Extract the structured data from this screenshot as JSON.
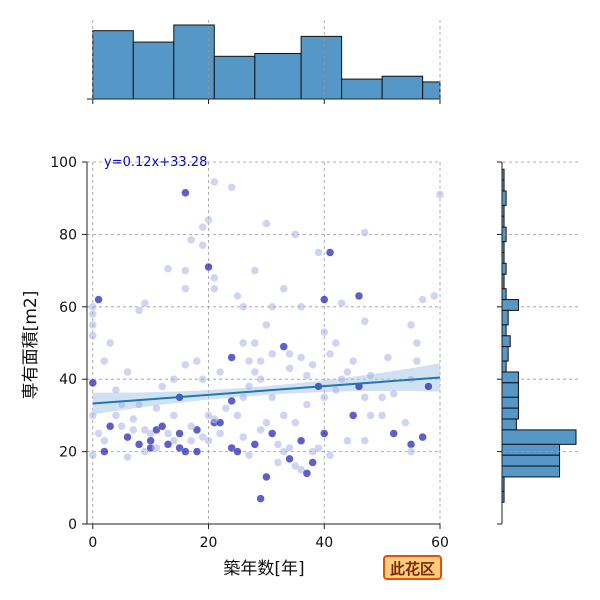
{
  "chart_data": {
    "type": "scatter",
    "xlabel": "築年数[年]",
    "ylabel": "専有面積[m2]",
    "xlim": [
      -1,
      60
    ],
    "ylim": [
      0,
      100
    ],
    "xticks": [
      0,
      20,
      40,
      60
    ],
    "yticks": [
      0,
      20,
      40,
      60,
      80,
      100
    ],
    "grid": true,
    "regression": {
      "label": "y=0.12x+33.28",
      "slope": 0.12,
      "intercept": 33.28,
      "color": "#1f77b4"
    },
    "points": [
      [
        16,
        91.5
      ],
      [
        21,
        94.5
      ],
      [
        24,
        93
      ],
      [
        20,
        84
      ],
      [
        19,
        82
      ],
      [
        13,
        70.5
      ],
      [
        16,
        70
      ],
      [
        20,
        71
      ],
      [
        21,
        68
      ],
      [
        17,
        78.5
      ],
      [
        19,
        77
      ],
      [
        30,
        83
      ],
      [
        35,
        80
      ],
      [
        39,
        75
      ],
      [
        41,
        75
      ],
      [
        47,
        80.5
      ],
      [
        28,
        70
      ],
      [
        25,
        63
      ],
      [
        21,
        65
      ],
      [
        16,
        65
      ],
      [
        33,
        65
      ],
      [
        40,
        62
      ],
      [
        36,
        60
      ],
      [
        31,
        60
      ],
      [
        26,
        60
      ],
      [
        9,
        61
      ],
      [
        8,
        59
      ],
      [
        0,
        60
      ],
      [
        1,
        62
      ],
      [
        0,
        58
      ],
      [
        0,
        55
      ],
      [
        0,
        52
      ],
      [
        2,
        45
      ],
      [
        3,
        50
      ],
      [
        6,
        42
      ],
      [
        0,
        39
      ],
      [
        0,
        30
      ],
      [
        1,
        25
      ],
      [
        2,
        23
      ],
      [
        2,
        20
      ],
      [
        0,
        19
      ],
      [
        6,
        18.5
      ],
      [
        8,
        22
      ],
      [
        9,
        20
      ],
      [
        10,
        25
      ],
      [
        11,
        26
      ],
      [
        13,
        25
      ],
      [
        14,
        23
      ],
      [
        15,
        21
      ],
      [
        16,
        20
      ],
      [
        17,
        23
      ],
      [
        18,
        26
      ],
      [
        19,
        24
      ],
      [
        20,
        23
      ],
      [
        21,
        28
      ],
      [
        22,
        25
      ],
      [
        24,
        21
      ],
      [
        25,
        20
      ],
      [
        26,
        24
      ],
      [
        27,
        19
      ],
      [
        28,
        22
      ],
      [
        29,
        26
      ],
      [
        30,
        28
      ],
      [
        31,
        25
      ],
      [
        32,
        22
      ],
      [
        33,
        20
      ],
      [
        34,
        18
      ],
      [
        35,
        16
      ],
      [
        36,
        15
      ],
      [
        37,
        14
      ],
      [
        38,
        17
      ],
      [
        39,
        21
      ],
      [
        40,
        25
      ],
      [
        41,
        19
      ],
      [
        34,
        21
      ],
      [
        36,
        23
      ],
      [
        38,
        20
      ],
      [
        29,
        7
      ],
      [
        30,
        13
      ],
      [
        32,
        17
      ],
      [
        42,
        37
      ],
      [
        43,
        40
      ],
      [
        44,
        42
      ],
      [
        45,
        45
      ],
      [
        46,
        38
      ],
      [
        47,
        35
      ],
      [
        48,
        30
      ],
      [
        50,
        35
      ],
      [
        52,
        36
      ],
      [
        55,
        40
      ],
      [
        56,
        45
      ],
      [
        58,
        38
      ],
      [
        59,
        63
      ],
      [
        60,
        91
      ],
      [
        57,
        62
      ],
      [
        55,
        55
      ],
      [
        56,
        50
      ],
      [
        47,
        56
      ],
      [
        46,
        63
      ],
      [
        43,
        61
      ],
      [
        42,
        50
      ],
      [
        40,
        53
      ],
      [
        38,
        44
      ],
      [
        36,
        46
      ],
      [
        34,
        47
      ],
      [
        33,
        49
      ],
      [
        31,
        47
      ],
      [
        29,
        45
      ],
      [
        28,
        42
      ],
      [
        27,
        38
      ],
      [
        26,
        35
      ],
      [
        25,
        30
      ],
      [
        24,
        34
      ],
      [
        23,
        32
      ],
      [
        22,
        28
      ],
      [
        21,
        29
      ],
      [
        20,
        30
      ],
      [
        18,
        20
      ],
      [
        17,
        27
      ],
      [
        15,
        25
      ],
      [
        14,
        30
      ],
      [
        12,
        38
      ],
      [
        11,
        32
      ],
      [
        10,
        21
      ],
      [
        8,
        33
      ],
      [
        7,
        26
      ],
      [
        6,
        24
      ],
      [
        5,
        27
      ],
      [
        4,
        30
      ],
      [
        3,
        27
      ],
      [
        44,
        23
      ],
      [
        47,
        23
      ],
      [
        52,
        25
      ],
      [
        55,
        22
      ],
      [
        55,
        20
      ],
      [
        57,
        24
      ],
      [
        54,
        28
      ],
      [
        50,
        30
      ],
      [
        48,
        41
      ],
      [
        41,
        47
      ],
      [
        39,
        38
      ],
      [
        37,
        33
      ],
      [
        35,
        28
      ],
      [
        33,
        30
      ],
      [
        31,
        35
      ],
      [
        29,
        40
      ],
      [
        27,
        45
      ],
      [
        24,
        46
      ],
      [
        22,
        42
      ],
      [
        19,
        40
      ],
      [
        18,
        45
      ],
      [
        16,
        44
      ],
      [
        14,
        40
      ],
      [
        12,
        27
      ],
      [
        10,
        23
      ],
      [
        11,
        21
      ],
      [
        13,
        22
      ],
      [
        9,
        26
      ],
      [
        7,
        29
      ],
      [
        5,
        33
      ],
      [
        4,
        37
      ],
      [
        15,
        35
      ],
      [
        26,
        50
      ],
      [
        28,
        50
      ],
      [
        30,
        55
      ],
      [
        34,
        43
      ],
      [
        37,
        41
      ],
      [
        40,
        35
      ],
      [
        45,
        30
      ],
      [
        51,
        46
      ]
    ],
    "top_hist": {
      "bins": [
        [
          0,
          7
        ],
        [
          7,
          14
        ],
        [
          14,
          21
        ],
        [
          21,
          28
        ],
        [
          28,
          36
        ],
        [
          36,
          43
        ],
        [
          43,
          50
        ],
        [
          50,
          57
        ],
        [
          57,
          60
        ]
      ],
      "counts": [
        24,
        20,
        26,
        15,
        16,
        22,
        7,
        8,
        6
      ]
    },
    "right_hist": {
      "bins": [
        [
          98,
          100
        ],
        [
          95,
          98
        ],
        [
          92,
          95
        ],
        [
          88,
          92
        ],
        [
          85,
          88
        ],
        [
          82,
          85
        ],
        [
          78,
          82
        ],
        [
          75,
          78
        ],
        [
          72,
          75
        ],
        [
          69,
          72
        ],
        [
          65,
          69
        ],
        [
          62,
          65
        ],
        [
          59,
          62
        ],
        [
          55,
          59
        ],
        [
          52,
          55
        ],
        [
          49,
          52
        ],
        [
          45,
          49
        ],
        [
          42,
          45
        ],
        [
          39,
          42
        ],
        [
          35,
          39
        ],
        [
          32,
          35
        ],
        [
          29,
          32
        ],
        [
          26,
          29
        ],
        [
          22,
          26
        ],
        [
          19,
          22
        ],
        [
          16,
          19
        ],
        [
          13,
          16
        ],
        [
          9,
          13
        ],
        [
          6,
          9
        ]
      ],
      "counts": [
        0,
        1,
        1,
        2,
        1,
        1,
        2,
        1,
        1,
        2,
        1,
        2,
        8,
        3,
        2,
        4,
        3,
        2,
        8,
        8,
        8,
        8,
        7,
        36,
        28,
        28,
        28,
        1,
        1
      ]
    },
    "highlight": {
      "label": "此花区",
      "color": "#ffcc80",
      "border": "#e65100"
    },
    "colors": {
      "scatter_light": "#a8b1e8",
      "scatter_dark": "#1c1cb5",
      "hist_fill": "#5598c7",
      "grid": "#999999",
      "ci_band": "#a9c9e6"
    }
  }
}
